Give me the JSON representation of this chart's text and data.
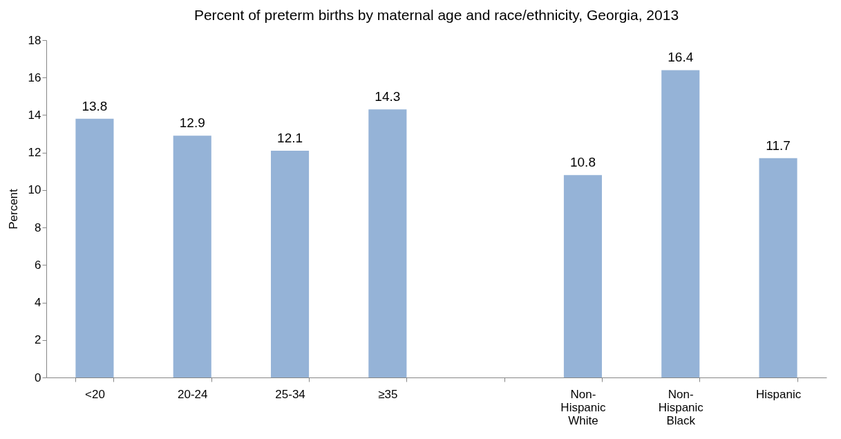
{
  "chart_data": {
    "type": "bar",
    "title": "Percent of preterm births by maternal age and race/ethnicity, Georgia, 2013",
    "ylabel": "Percent",
    "categories": [
      "<20",
      "20-24",
      "25-34",
      "≥35",
      null,
      "Non-Hispanic White",
      "Non-Hispanic Black",
      "Hispanic"
    ],
    "values": [
      13.8,
      12.9,
      12.1,
      14.3,
      null,
      10.8,
      16.4,
      11.7
    ],
    "color": "#95b3d7",
    "ylim": [
      0,
      18
    ],
    "yticks": [
      0,
      2,
      4,
      6,
      8,
      10,
      12,
      14,
      16,
      18
    ],
    "grid": false,
    "data_labels": true
  }
}
